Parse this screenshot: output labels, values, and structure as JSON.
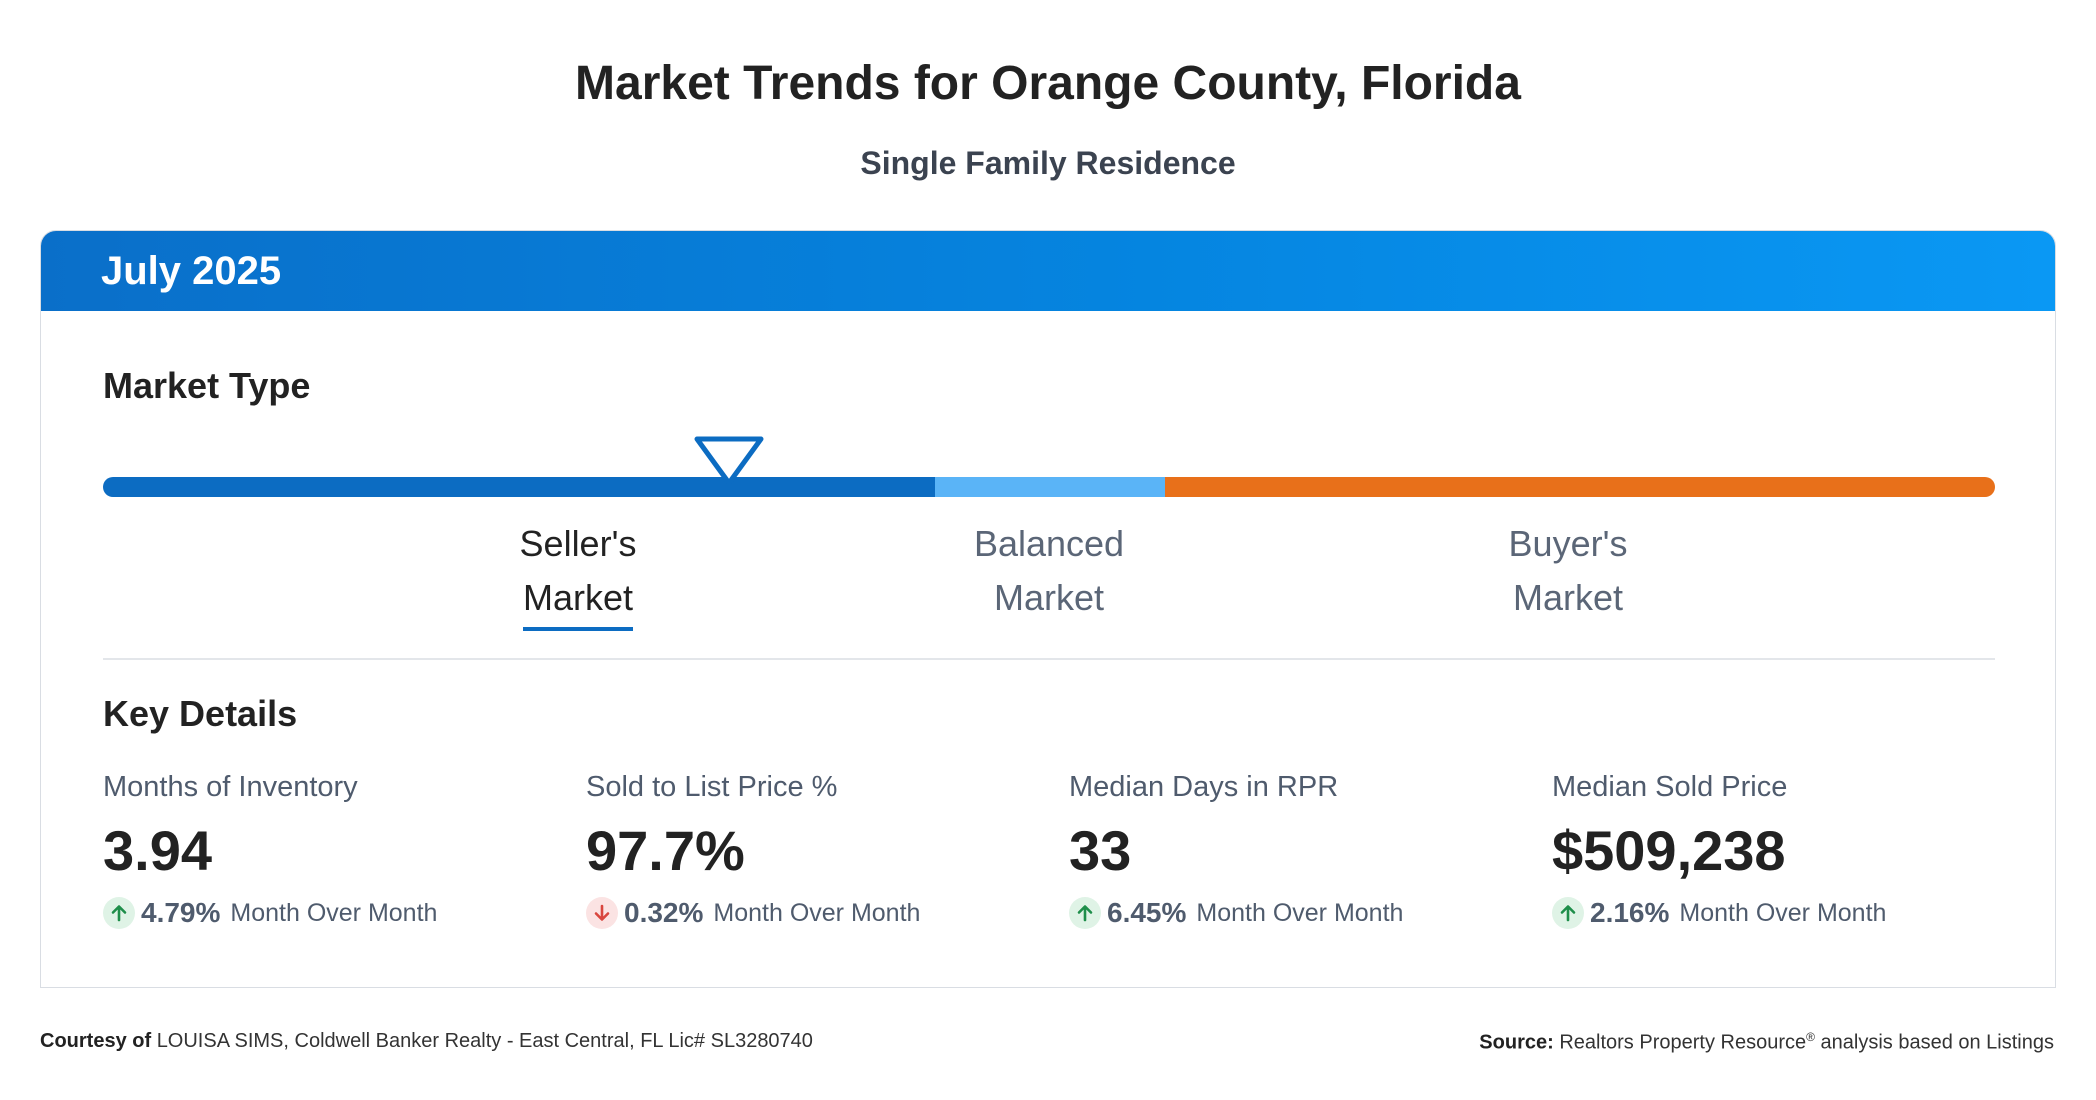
{
  "header": {
    "title": "Market Trends for Orange County, Florida",
    "subtitle": "Single Family Residence"
  },
  "card": {
    "month": "July 2025",
    "market_type": {
      "heading": "Market Type",
      "segments": [
        {
          "line1": "Seller's",
          "line2": "Market",
          "color": "#0c6cc2",
          "active": true
        },
        {
          "line1": "Balanced",
          "line2": "Market",
          "color": "#5ab4f7",
          "active": false
        },
        {
          "line1": "Buyer's",
          "line2": "Market",
          "color": "#e8701a",
          "active": false
        }
      ],
      "indicator_position_fraction": 0.33
    },
    "key_details": {
      "heading": "Key Details",
      "metrics": [
        {
          "label": "Months of Inventory",
          "value": "3.94",
          "change": "4.79%",
          "direction": "up",
          "change_text": "Month Over Month"
        },
        {
          "label": "Sold to List Price %",
          "value": "97.7%",
          "change": "0.32%",
          "direction": "down",
          "change_text": "Month Over Month"
        },
        {
          "label": "Median Days in RPR",
          "value": "33",
          "change": "6.45%",
          "direction": "up",
          "change_text": "Month Over Month"
        },
        {
          "label": "Median Sold Price",
          "value": "$509,238",
          "change": "2.16%",
          "direction": "up",
          "change_text": "Month Over Month"
        }
      ]
    }
  },
  "footer": {
    "courtesy_label": "Courtesy of",
    "courtesy_text": "LOUISA SIMS, Coldwell Banker Realty - East Central, FL Lic# SL3280740",
    "source_label": "Source:",
    "source_text_before": "Realtors Property Resource",
    "source_sup": "®",
    "source_text_after": " analysis based on Listings"
  },
  "colors": {
    "brand_blue": "#0c6cc2",
    "up_green": "#1e8e4a",
    "down_red": "#d9463e"
  }
}
